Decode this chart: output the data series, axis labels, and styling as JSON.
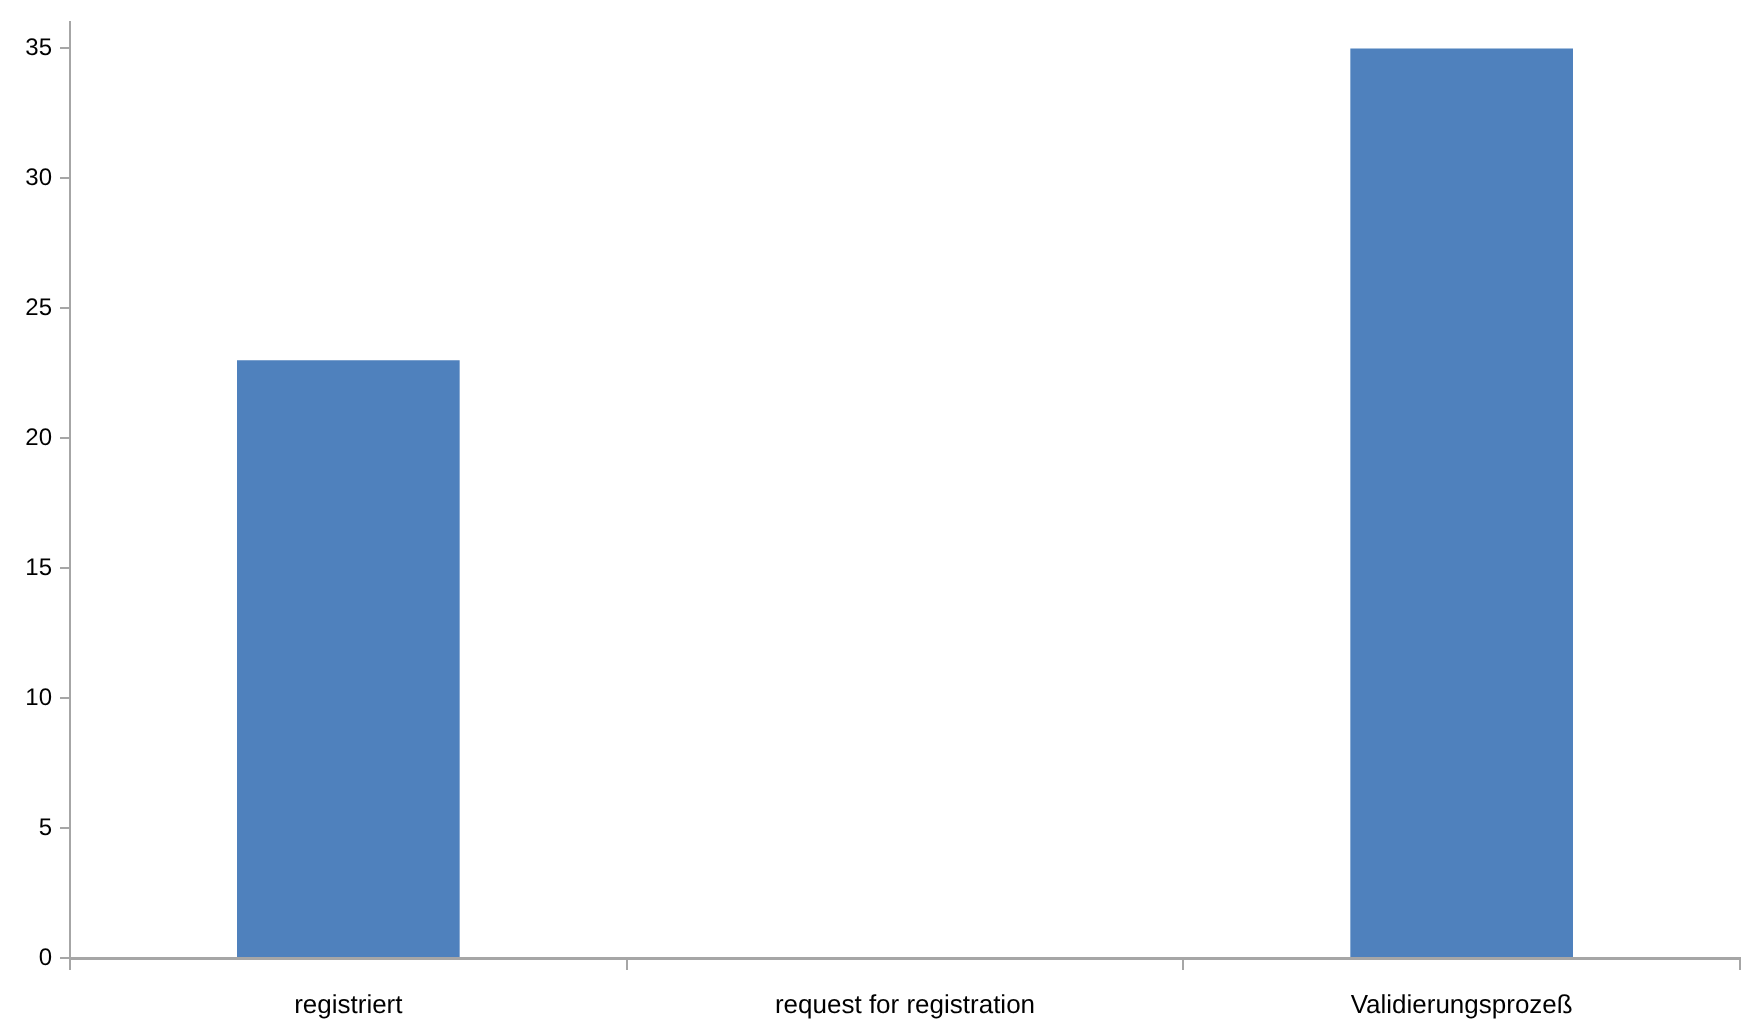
{
  "chart_data": {
    "type": "bar",
    "categories": [
      "registriert",
      "request for registration",
      "Validierungsprozeß"
    ],
    "values": [
      23,
      0,
      35
    ],
    "color": "#4f81bd",
    "ylim": [
      0,
      36
    ],
    "yticks": [
      0,
      5,
      10,
      15,
      20,
      25,
      30,
      35
    ],
    "grid": false
  }
}
